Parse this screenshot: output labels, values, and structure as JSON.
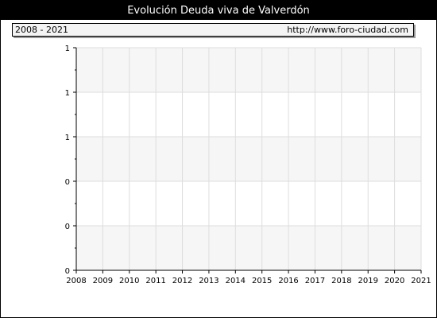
{
  "header": {
    "title": "Evolución Deuda viva de Valverdón",
    "period": "2008 - 2021",
    "source_url": "http://www.foro-ciudad.com"
  },
  "chart_data": {
    "type": "line",
    "title": "Evolución Deuda viva de Valverdón",
    "xlabel": "",
    "ylabel": "",
    "x_ticks": [
      "2008",
      "2009",
      "2010",
      "2011",
      "2012",
      "2013",
      "2014",
      "2015",
      "2016",
      "2017",
      "2018",
      "2019",
      "2020",
      "2021"
    ],
    "y_tick_labels": [
      "0",
      "0",
      "0",
      "1",
      "1",
      "1"
    ],
    "series": [],
    "grid": true,
    "colors": {
      "band": "#f6f6f6",
      "grid": "#dddddd",
      "axis": "#000000"
    }
  }
}
